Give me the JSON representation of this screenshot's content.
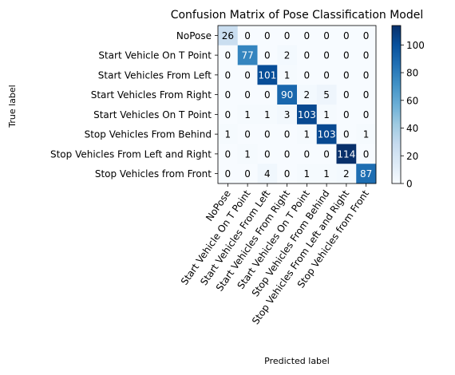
{
  "chart_data": {
    "type": "heatmap",
    "title": "Confusion Matrix of Pose Classification Model",
    "xlabel": "Predicted label",
    "ylabel": "True label",
    "row_labels": [
      "NoPose",
      "Start Vehicle On T Point",
      "Start Vehicles From Left",
      "Start Vehicles From Right",
      "Start Vehicles On T Point",
      "Stop Vehicles From Behind",
      "Stop Vehicles From Left and Right",
      "Stop Vehicles from Front"
    ],
    "col_labels": [
      "NoPose",
      "Start Vehicle On T Point",
      "Start Vehicles From Left",
      "Start Vehicles From Right",
      "Start Vehicles On T Point",
      "Stop Vehicles From Behind",
      "Stop Vehicles From Left and Right",
      "Stop Vehicles from Front"
    ],
    "matrix": [
      [
        26,
        0,
        0,
        0,
        0,
        0,
        0,
        0
      ],
      [
        0,
        77,
        0,
        2,
        0,
        0,
        0,
        0
      ],
      [
        0,
        0,
        101,
        1,
        0,
        0,
        0,
        0
      ],
      [
        0,
        0,
        0,
        90,
        2,
        5,
        0,
        0
      ],
      [
        0,
        1,
        1,
        3,
        103,
        1,
        0,
        0
      ],
      [
        1,
        0,
        0,
        0,
        1,
        103,
        0,
        1
      ],
      [
        0,
        1,
        0,
        0,
        0,
        0,
        114,
        0
      ],
      [
        0,
        0,
        4,
        0,
        1,
        1,
        2,
        87
      ]
    ],
    "colormap": "Blues",
    "colorbar": {
      "min": 0,
      "max": 114,
      "ticks": [
        0,
        20,
        40,
        60,
        80,
        100
      ]
    },
    "colors": {
      "low": "#f7fbff",
      "high": "#08306b",
      "text_dark": "#000000",
      "text_light": "#ffffff"
    }
  }
}
